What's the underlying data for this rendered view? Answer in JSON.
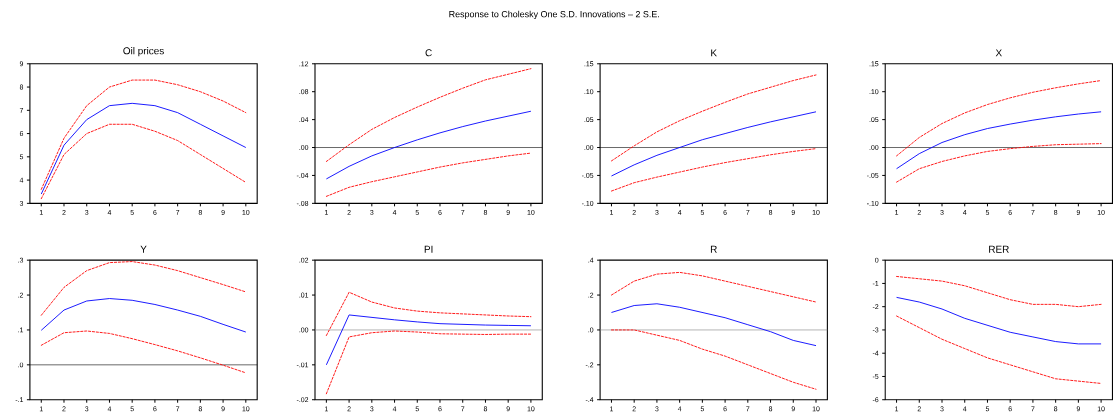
{
  "chart_data": [
    {
      "type": "line",
      "title": "Oil prices",
      "annotations": [
        "Response to Cholesky One S.D. Innovations – 2 S.E."
      ],
      "x": [
        1,
        2,
        3,
        4,
        5,
        6,
        7,
        8,
        9,
        10
      ],
      "xlim": [
        0.5,
        10.5
      ],
      "xticks": [
        1,
        2,
        3,
        4,
        5,
        6,
        7,
        8,
        9,
        10
      ],
      "ylim": [
        3,
        9
      ],
      "yticks": [
        3,
        4,
        5,
        6,
        7,
        8,
        9
      ],
      "series": [
        {
          "color": "#ff0000",
          "line_style": "dashed",
          "values": [
            3.6,
            5.8,
            7.2,
            8.0,
            8.3,
            8.3,
            8.1,
            7.8,
            7.4,
            6.9
          ]
        },
        {
          "color": "#0000ff",
          "line_style": "solid",
          "values": [
            3.4,
            5.5,
            6.6,
            7.2,
            7.3,
            7.2,
            6.9,
            6.4,
            5.9,
            5.4
          ]
        },
        {
          "color": "#ff0000",
          "line_style": "dashed",
          "values": [
            3.2,
            5.1,
            6.0,
            6.4,
            6.4,
            6.1,
            5.7,
            5.1,
            4.5,
            3.9
          ]
        }
      ]
    },
    {
      "type": "line",
      "title": "C",
      "x": [
        1,
        2,
        3,
        4,
        5,
        6,
        7,
        8,
        9,
        10
      ],
      "xlim": [
        0.5,
        10.5
      ],
      "xticks": [
        1,
        2,
        3,
        4,
        5,
        6,
        7,
        8,
        9,
        10
      ],
      "ylim": [
        -0.08,
        0.12
      ],
      "yticks": [
        {
          "value": -0.08,
          "label": "-.08"
        },
        {
          "value": -0.04,
          "label": "-.04"
        },
        {
          "value": 0,
          "label": ".00"
        },
        {
          "value": 0.04,
          "label": ".04"
        },
        {
          "value": 0.08,
          "label": ".08"
        },
        {
          "value": 0.12,
          "label": ".12"
        }
      ],
      "ref_lines": [
        {
          "axis": "y",
          "value": 0,
          "color": "#000000"
        }
      ],
      "series": [
        {
          "color": "#ff0000",
          "line_style": "dashed",
          "values": [
            -0.02,
            0.004,
            0.026,
            0.043,
            0.058,
            0.072,
            0.085,
            0.097,
            0.105,
            0.113
          ]
        },
        {
          "color": "#0000ff",
          "line_style": "solid",
          "values": [
            -0.045,
            -0.027,
            -0.012,
            0.0,
            0.011,
            0.021,
            0.03,
            0.038,
            0.045,
            0.052
          ]
        },
        {
          "color": "#ff0000",
          "line_style": "dashed",
          "values": [
            -0.07,
            -0.057,
            -0.049,
            -0.042,
            -0.035,
            -0.028,
            -0.022,
            -0.017,
            -0.012,
            -0.008
          ]
        }
      ]
    },
    {
      "type": "line",
      "title": "K",
      "x": [
        1,
        2,
        3,
        4,
        5,
        6,
        7,
        8,
        9,
        10
      ],
      "xlim": [
        0.5,
        10.5
      ],
      "xticks": [
        1,
        2,
        3,
        4,
        5,
        6,
        7,
        8,
        9,
        10
      ],
      "ylim": [
        -0.1,
        0.15
      ],
      "yticks": [
        {
          "value": -0.1,
          "label": "-.10"
        },
        {
          "value": -0.05,
          "label": "-.05"
        },
        {
          "value": 0,
          "label": ".00"
        },
        {
          "value": 0.05,
          "label": ".05"
        },
        {
          "value": 0.1,
          "label": ".10"
        },
        {
          "value": 0.15,
          "label": ".15"
        }
      ],
      "ref_lines": [
        {
          "axis": "y",
          "value": 0,
          "color": "#000000"
        }
      ],
      "series": [
        {
          "color": "#ff0000",
          "line_style": "dashed",
          "values": [
            -0.024,
            0.003,
            0.028,
            0.048,
            0.065,
            0.081,
            0.096,
            0.108,
            0.12,
            0.13
          ]
        },
        {
          "color": "#0000ff",
          "line_style": "solid",
          "values": [
            -0.051,
            -0.031,
            -0.014,
            0.0,
            0.014,
            0.025,
            0.036,
            0.046,
            0.055,
            0.064
          ]
        },
        {
          "color": "#ff0000",
          "line_style": "dashed",
          "values": [
            -0.078,
            -0.063,
            -0.053,
            -0.044,
            -0.035,
            -0.027,
            -0.02,
            -0.013,
            -0.007,
            -0.002
          ]
        }
      ]
    },
    {
      "type": "line",
      "title": "X",
      "x": [
        1,
        2,
        3,
        4,
        5,
        6,
        7,
        8,
        9,
        10
      ],
      "xlim": [
        0.5,
        10.5
      ],
      "xticks": [
        1,
        2,
        3,
        4,
        5,
        6,
        7,
        8,
        9,
        10
      ],
      "ylim": [
        -0.1,
        0.15
      ],
      "yticks": [
        {
          "value": -0.1,
          "label": "-.10"
        },
        {
          "value": -0.05,
          "label": "-.05"
        },
        {
          "value": 0,
          "label": ".00"
        },
        {
          "value": 0.05,
          "label": ".05"
        },
        {
          "value": 0.1,
          "label": ".10"
        },
        {
          "value": 0.15,
          "label": ".15"
        }
      ],
      "ref_lines": [
        {
          "axis": "y",
          "value": 0,
          "color": "#000000"
        }
      ],
      "series": [
        {
          "color": "#ff0000",
          "line_style": "dashed",
          "values": [
            -0.015,
            0.018,
            0.043,
            0.062,
            0.077,
            0.089,
            0.099,
            0.107,
            0.114,
            0.12
          ]
        },
        {
          "color": "#0000ff",
          "line_style": "solid",
          "values": [
            -0.038,
            -0.011,
            0.009,
            0.023,
            0.034,
            0.042,
            0.049,
            0.055,
            0.06,
            0.064
          ]
        },
        {
          "color": "#ff0000",
          "line_style": "dashed",
          "values": [
            -0.062,
            -0.038,
            -0.025,
            -0.015,
            -0.007,
            -0.002,
            0.002,
            0.005,
            0.006,
            0.007
          ]
        }
      ]
    },
    {
      "type": "line",
      "title": "Y",
      "x": [
        1,
        2,
        3,
        4,
        5,
        6,
        7,
        8,
        9,
        10
      ],
      "xlim": [
        0.5,
        10.5
      ],
      "xticks": [
        1,
        2,
        3,
        4,
        5,
        6,
        7,
        8,
        9,
        10
      ],
      "ylim": [
        -0.1,
        0.3
      ],
      "yticks": [
        {
          "value": -0.1,
          "label": "-.1"
        },
        {
          "value": 0,
          "label": ".0"
        },
        {
          "value": 0.1,
          "label": ".1"
        },
        {
          "value": 0.2,
          "label": ".2"
        },
        {
          "value": 0.3,
          "label": ".3"
        }
      ],
      "ref_lines": [
        {
          "axis": "y",
          "value": 0,
          "color": "#000000"
        }
      ],
      "series": [
        {
          "color": "#ff0000",
          "line_style": "dashed",
          "values": [
            0.142,
            0.222,
            0.27,
            0.293,
            0.296,
            0.286,
            0.27,
            0.25,
            0.23,
            0.209
          ]
        },
        {
          "color": "#0000ff",
          "line_style": "solid",
          "values": [
            0.099,
            0.157,
            0.183,
            0.19,
            0.185,
            0.173,
            0.157,
            0.139,
            0.116,
            0.094
          ]
        },
        {
          "color": "#ff0000",
          "line_style": "dashed",
          "values": [
            0.056,
            0.092,
            0.097,
            0.09,
            0.075,
            0.058,
            0.04,
            0.02,
            -0.001,
            -0.023
          ]
        }
      ]
    },
    {
      "type": "line",
      "title": "PI",
      "x": [
        1,
        2,
        3,
        4,
        5,
        6,
        7,
        8,
        9,
        10
      ],
      "xlim": [
        0.5,
        10.5
      ],
      "xticks": [
        1,
        2,
        3,
        4,
        5,
        6,
        7,
        8,
        9,
        10
      ],
      "ylim": [
        -0.02,
        0.02
      ],
      "yticks": [
        {
          "value": -0.02,
          "label": "-.02"
        },
        {
          "value": -0.01,
          "label": "-.01"
        },
        {
          "value": 0,
          "label": ".00"
        },
        {
          "value": 0.01,
          "label": ".01"
        },
        {
          "value": 0.02,
          "label": ".02"
        }
      ],
      "ref_lines": [
        {
          "axis": "y",
          "value": 0,
          "color": "#808080"
        }
      ],
      "series": [
        {
          "color": "#ff0000",
          "line_style": "dashed",
          "values": [
            -0.0016,
            0.0108,
            0.008,
            0.0063,
            0.0054,
            0.0049,
            0.0046,
            0.0043,
            0.004,
            0.0038
          ]
        },
        {
          "color": "#0000ff",
          "line_style": "solid",
          "values": [
            -0.01,
            0.0043,
            0.0036,
            0.0029,
            0.0023,
            0.0018,
            0.0016,
            0.0014,
            0.0013,
            0.0012
          ]
        },
        {
          "color": "#ff0000",
          "line_style": "dashed",
          "values": [
            -0.0183,
            -0.002,
            -0.0008,
            -0.0003,
            -0.0006,
            -0.0011,
            -0.0012,
            -0.0013,
            -0.0012,
            -0.0012
          ]
        }
      ]
    },
    {
      "type": "line",
      "title": "R",
      "x": [
        1,
        2,
        3,
        4,
        5,
        6,
        7,
        8,
        9,
        10
      ],
      "xlim": [
        0.5,
        10.5
      ],
      "xticks": [
        1,
        2,
        3,
        4,
        5,
        6,
        7,
        8,
        9,
        10
      ],
      "ylim": [
        -0.4,
        0.4
      ],
      "yticks": [
        {
          "value": -0.4,
          "label": "-.4"
        },
        {
          "value": -0.2,
          "label": "-.2"
        },
        {
          "value": 0,
          "label": ".0"
        },
        {
          "value": 0.2,
          "label": ".2"
        },
        {
          "value": 0.4,
          "label": ".4"
        }
      ],
      "ref_lines": [
        {
          "axis": "y",
          "value": 0,
          "color": "#808080"
        }
      ],
      "series": [
        {
          "color": "#ff0000",
          "line_style": "dashed",
          "values": [
            0.2,
            0.28,
            0.32,
            0.33,
            0.31,
            0.28,
            0.25,
            0.22,
            0.19,
            0.16
          ]
        },
        {
          "color": "#0000ff",
          "line_style": "solid",
          "values": [
            0.1,
            0.14,
            0.15,
            0.13,
            0.1,
            0.07,
            0.03,
            -0.01,
            -0.06,
            -0.09
          ]
        },
        {
          "color": "#ff0000",
          "line_style": "dashed",
          "values": [
            0.0,
            0.0,
            -0.03,
            -0.06,
            -0.11,
            -0.15,
            -0.2,
            -0.25,
            -0.3,
            -0.34
          ]
        }
      ]
    },
    {
      "type": "line",
      "title": "RER",
      "x": [
        1,
        2,
        3,
        4,
        5,
        6,
        7,
        8,
        9,
        10
      ],
      "xlim": [
        0.5,
        10.5
      ],
      "xticks": [
        1,
        2,
        3,
        4,
        5,
        6,
        7,
        8,
        9,
        10
      ],
      "ylim": [
        -6,
        0
      ],
      "yticks": [
        -6,
        -5,
        -4,
        -3,
        -2,
        -1,
        0
      ],
      "series": [
        {
          "color": "#ff0000",
          "line_style": "dashed",
          "values": [
            -0.7,
            -0.8,
            -0.9,
            -1.1,
            -1.4,
            -1.7,
            -1.9,
            -1.9,
            -2.0,
            -1.9
          ]
        },
        {
          "color": "#0000ff",
          "line_style": "solid",
          "values": [
            -1.6,
            -1.8,
            -2.1,
            -2.5,
            -2.8,
            -3.1,
            -3.3,
            -3.5,
            -3.6,
            -3.6
          ]
        },
        {
          "color": "#ff0000",
          "line_style": "dashed",
          "values": [
            -2.4,
            -2.9,
            -3.4,
            -3.8,
            -4.2,
            -4.5,
            -4.8,
            -5.1,
            -5.2,
            -5.3
          ]
        }
      ]
    }
  ]
}
